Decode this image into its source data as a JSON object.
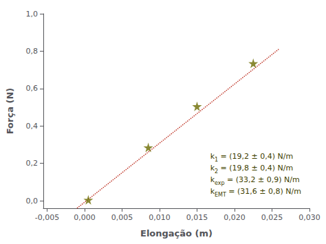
{
  "chart_data": {
    "type": "scatter",
    "xlabel": "Elongação (m)",
    "ylabel": "Força (N)",
    "xlim": [
      -0.0055,
      0.03
    ],
    "ylim": [
      -0.04,
      1.0
    ],
    "xticks": [
      {
        "value": -0.005,
        "label": "-0,005"
      },
      {
        "value": 0.0,
        "label": "0,000"
      },
      {
        "value": 0.005,
        "label": "0,005"
      },
      {
        "value": 0.01,
        "label": "0,010"
      },
      {
        "value": 0.015,
        "label": "0,015"
      },
      {
        "value": 0.02,
        "label": "0,020"
      },
      {
        "value": 0.025,
        "label": "0,025"
      },
      {
        "value": 0.03,
        "label": "0,030"
      }
    ],
    "yticks": [
      {
        "value": 0.0,
        "label": "0,0"
      },
      {
        "value": 0.2,
        "label": "0,2"
      },
      {
        "value": 0.4,
        "label": "0,4"
      },
      {
        "value": 0.6,
        "label": "0,6"
      },
      {
        "value": 0.8,
        "label": "0,8"
      },
      {
        "value": 1.0,
        "label": "1,0"
      }
    ],
    "grid": false,
    "series": [
      {
        "type": "line",
        "line_style": "dotted",
        "color": "#c0392b",
        "x": [
          -0.001,
          0.026
        ],
        "values": [
          -0.0396,
          0.8136
        ]
      },
      {
        "type": "scatter",
        "marker": "star",
        "color": "#6b6b00",
        "x": [
          0.0005,
          0.0085,
          0.015,
          0.0225
        ],
        "values": [
          0.005,
          0.285,
          0.505,
          0.735
        ]
      }
    ],
    "annotations": {
      "color": "#404000",
      "lines": [
        {
          "main": "k",
          "sub": "1",
          "rest": " = (19,2 ± 0,4) N/m"
        },
        {
          "main": "k",
          "sub": "2",
          "rest": " = (19,8 ± 0,4) N/m"
        },
        {
          "main": "k",
          "sub": "exp",
          "rest": " = (33,2 ± 0,9) N/m"
        },
        {
          "main": "k",
          "sub": "EMT",
          "rest": " = (31,6 ± 0,8) N/m"
        }
      ]
    }
  }
}
